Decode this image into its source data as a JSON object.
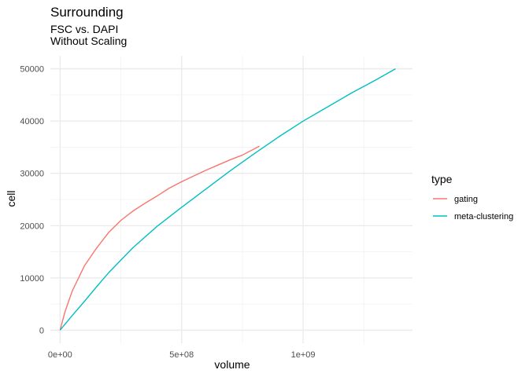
{
  "chart_data": {
    "type": "line",
    "title": "Surrounding",
    "subtitle": [
      "FSC vs. DAPI",
      "Without Scaling"
    ],
    "xlabel": "volume",
    "ylabel": "cell",
    "xlim": [
      -40000000,
      1450000000
    ],
    "ylim": [
      -2500,
      52500
    ],
    "x_ticks": [
      0,
      500000000,
      1000000000
    ],
    "x_tick_labels": [
      "0e+00",
      "5e+08",
      "1e+09"
    ],
    "y_ticks": [
      0,
      10000,
      20000,
      30000,
      40000,
      50000
    ],
    "y_tick_labels": [
      "0",
      "10000",
      "20000",
      "30000",
      "40000",
      "50000"
    ],
    "grid": true,
    "legend": {
      "title": "type",
      "position": "right"
    },
    "series": [
      {
        "name": "gating",
        "color": "#F8766D",
        "x": [
          0,
          20000000,
          50000000,
          100000000,
          150000000,
          200000000,
          250000000,
          300000000,
          350000000,
          400000000,
          450000000,
          500000000,
          550000000,
          600000000,
          650000000,
          700000000,
          750000000,
          820000000
        ],
        "y": [
          0,
          3500,
          7500,
          12300,
          15700,
          18700,
          21000,
          22800,
          24300,
          25700,
          27200,
          28400,
          29500,
          30600,
          31600,
          32600,
          33500,
          35200
        ]
      },
      {
        "name": "meta-clustering",
        "color": "#00BFC4",
        "x": [
          0,
          50000000,
          100000000,
          150000000,
          200000000,
          300000000,
          400000000,
          500000000,
          600000000,
          700000000,
          800000000,
          900000000,
          1000000000,
          1100000000,
          1200000000,
          1300000000,
          1380000000
        ],
        "y": [
          0,
          2800,
          5500,
          8300,
          11000,
          15800,
          19900,
          23500,
          27000,
          30500,
          33800,
          37000,
          40000,
          42700,
          45400,
          47900,
          50000
        ]
      }
    ]
  }
}
